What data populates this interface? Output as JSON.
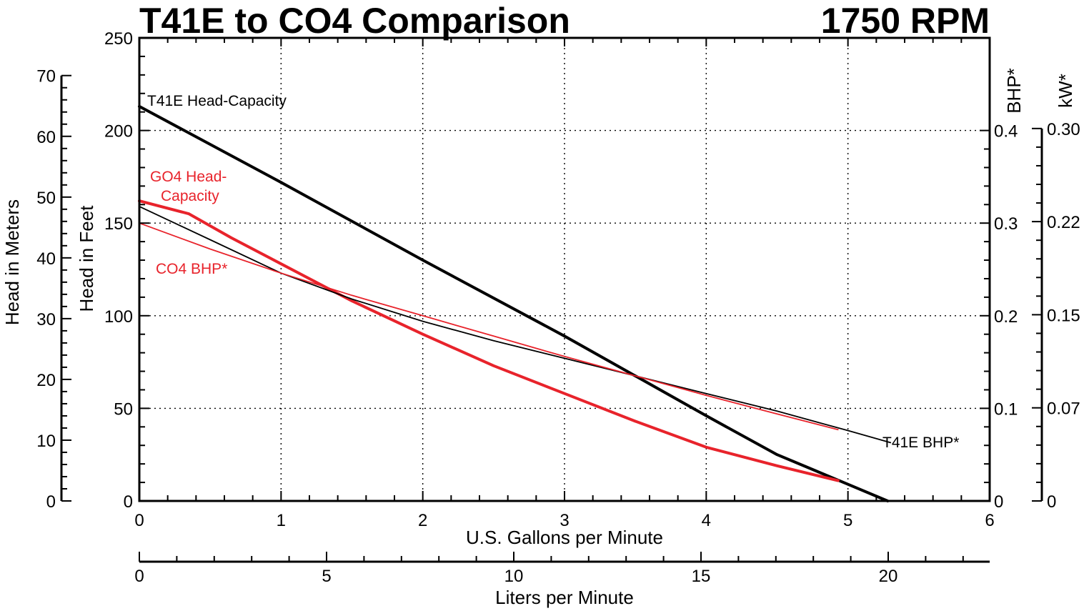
{
  "chart_data": {
    "type": "line",
    "title": "T41E to CO4 Comparison",
    "subtitle": "1750 RPM",
    "xlabel": "U.S. Gallons per Minute",
    "x2label": "Liters per Minute",
    "ylabel": "Head in Feet",
    "y2label": "Head in Meters",
    "y3label": "BHP*",
    "y4label": "kW*",
    "xlim": [
      0,
      6
    ],
    "x2lim": [
      0,
      22.71
    ],
    "ylim": [
      0,
      250
    ],
    "y2lim": [
      0,
      76.2
    ],
    "y3lim": [
      0,
      0.5
    ],
    "y4lim": [
      0,
      0.373
    ],
    "grid": true,
    "x_ticks": [
      "0",
      "1",
      "2",
      "3",
      "4",
      "5",
      "6"
    ],
    "x2_ticks": [
      "0",
      "5",
      "10",
      "15",
      "20"
    ],
    "y_ticks": [
      "0",
      "50",
      "100",
      "150",
      "200",
      "250"
    ],
    "y2_ticks": [
      "0",
      "10",
      "20",
      "30",
      "40",
      "50",
      "60",
      "70"
    ],
    "y3_ticks": [
      "0",
      "0.1",
      "0.2",
      "0.3",
      "0.4"
    ],
    "y4_ticks": [
      "0",
      "0.07",
      "0.15",
      "0.22",
      "0.30"
    ],
    "y4_tick_values": [
      0,
      0.075,
      0.15,
      0.225,
      0.3
    ],
    "series": [
      {
        "name": "T41E Head-Capacity",
        "color": "#000000",
        "axis": "head",
        "x": [
          0,
          1,
          2,
          3,
          4,
          4.5,
          5,
          5.28
        ],
        "y": [
          213,
          172,
          130,
          89,
          46,
          25,
          9,
          0
        ]
      },
      {
        "name": "GO4 Head-Capacity",
        "color": "#e8232b",
        "axis": "head",
        "x": [
          0,
          0.35,
          0.65,
          1,
          1.5,
          2,
          2.5,
          3,
          3.5,
          4,
          4.5,
          4.93
        ],
        "y": [
          162,
          155,
          142,
          128,
          108,
          90,
          73,
          58,
          43,
          29,
          19,
          11
        ]
      },
      {
        "name": "T41E BHP*",
        "color": "#000000",
        "axis": "bhp",
        "x": [
          0,
          0.5,
          1,
          1.5,
          2,
          2.5,
          3,
          3.5,
          4,
          4.5,
          5,
          5.3
        ],
        "y": [
          0.318,
          0.282,
          0.246,
          0.218,
          0.194,
          0.173,
          0.154,
          0.135,
          0.116,
          0.097,
          0.076,
          0.063
        ]
      },
      {
        "name": "CO4 BHP*",
        "color": "#e8232b",
        "axis": "bhp",
        "x": [
          0,
          0.5,
          1,
          1.5,
          2,
          2.5,
          3,
          3.5,
          4,
          4.5,
          4.93
        ],
        "y": [
          0.3,
          0.272,
          0.246,
          0.222,
          0.2,
          0.178,
          0.156,
          0.135,
          0.114,
          0.094,
          0.077
        ]
      }
    ]
  }
}
